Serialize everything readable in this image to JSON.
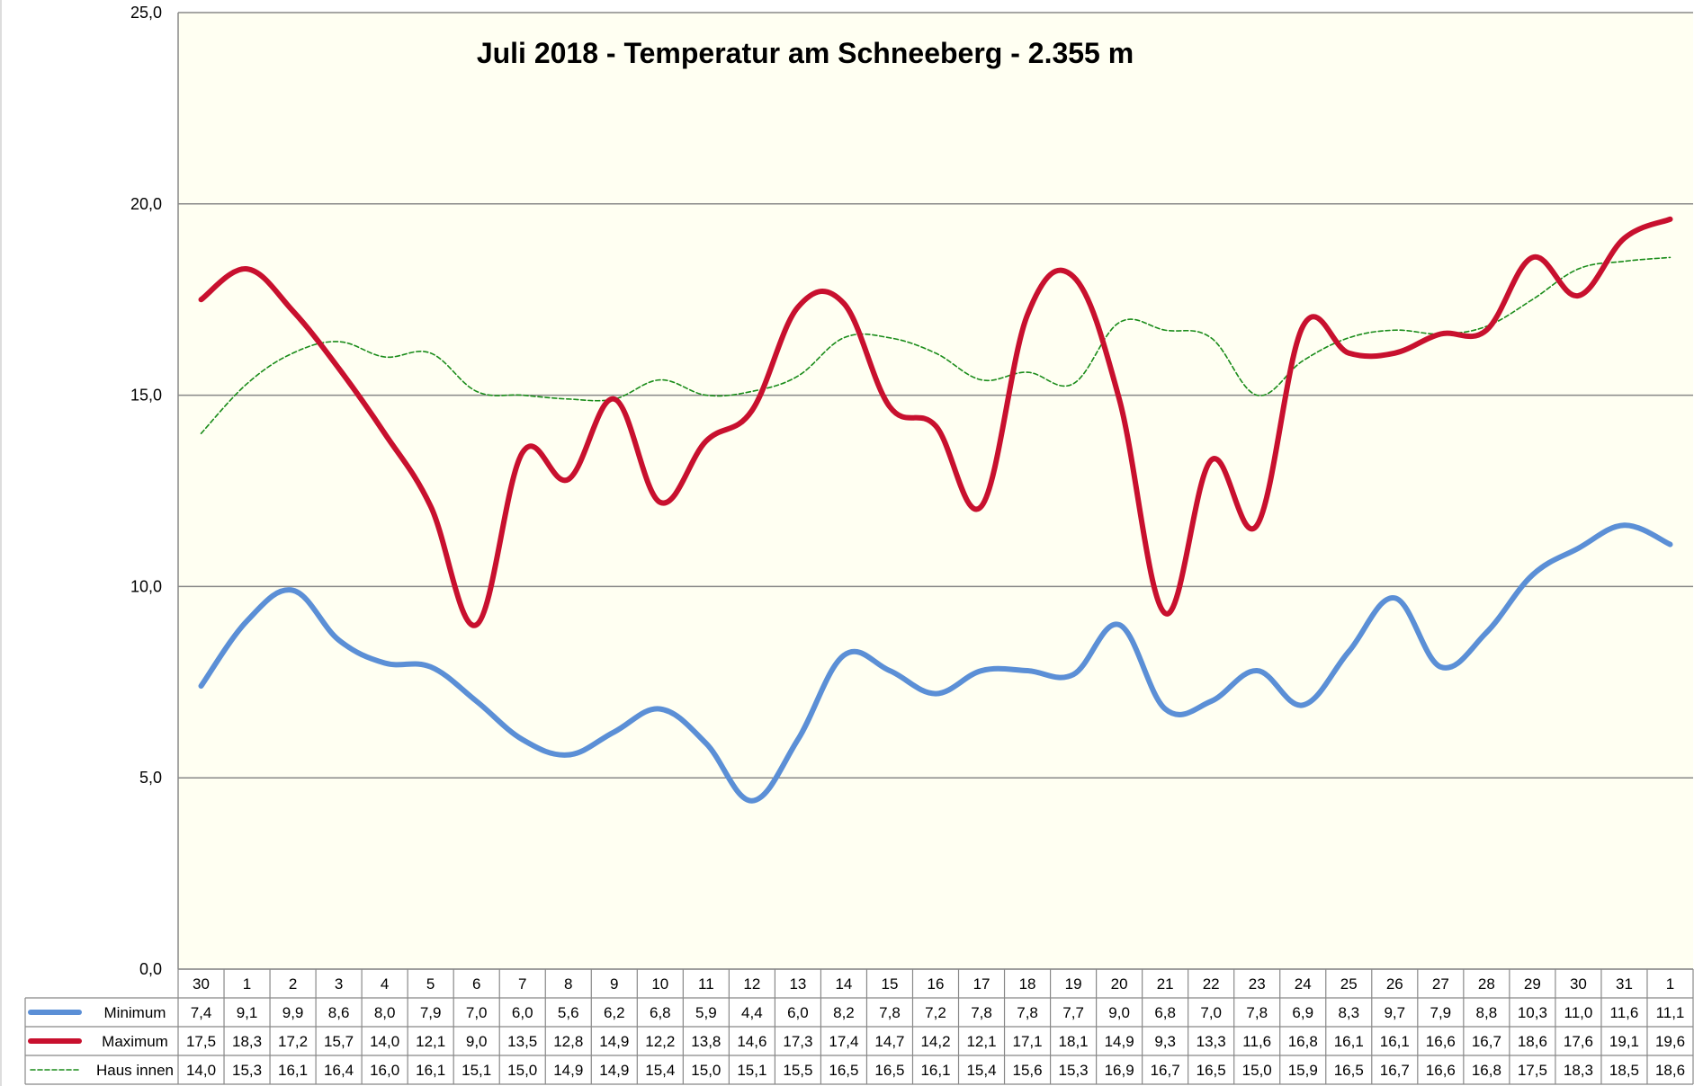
{
  "chart_data": {
    "type": "line",
    "title": "Juli 2018 - Temperatur am Schneeberg - 2.355 m",
    "xlabel": "",
    "ylabel": "",
    "ylim": [
      0,
      25
    ],
    "y_ticks": [
      "0,0",
      "5,0",
      "10,0",
      "15,0",
      "20,0",
      "25,0"
    ],
    "y_tick_values": [
      0,
      5,
      10,
      15,
      20,
      25
    ],
    "grid": true,
    "legend_position": "data-table-bottom-left",
    "categories": [
      "30",
      "1",
      "2",
      "3",
      "4",
      "5",
      "6",
      "7",
      "8",
      "9",
      "10",
      "11",
      "12",
      "13",
      "14",
      "15",
      "16",
      "17",
      "18",
      "19",
      "20",
      "21",
      "22",
      "23",
      "24",
      "25",
      "26",
      "27",
      "28",
      "29",
      "30",
      "31",
      "1"
    ],
    "series": [
      {
        "name": "Minimum",
        "color": "#5b8fd6",
        "style": "solid-thick",
        "values": [
          7.4,
          9.1,
          9.9,
          8.6,
          8.0,
          7.9,
          7.0,
          6.0,
          5.6,
          6.2,
          6.8,
          5.9,
          4.4,
          6.0,
          8.2,
          7.8,
          7.2,
          7.8,
          7.8,
          7.7,
          9.0,
          6.8,
          7.0,
          7.8,
          6.9,
          8.3,
          9.7,
          7.9,
          8.8,
          10.3,
          11.0,
          11.6,
          11.1
        ],
        "labels": [
          "7,4",
          "9,1",
          "9,9",
          "8,6",
          "8,0",
          "7,9",
          "7,0",
          "6,0",
          "5,6",
          "6,2",
          "6,8",
          "5,9",
          "4,4",
          "6,0",
          "8,2",
          "7,8",
          "7,2",
          "7,8",
          "7,8",
          "7,7",
          "9,0",
          "6,8",
          "7,0",
          "7,8",
          "6,9",
          "8,3",
          "9,7",
          "7,9",
          "8,8",
          "10,3",
          "11,0",
          "11,6",
          "11,1"
        ]
      },
      {
        "name": "Maximum",
        "color": "#c8102e",
        "style": "solid-thick",
        "values": [
          17.5,
          18.3,
          17.2,
          15.7,
          14.0,
          12.1,
          9.0,
          13.5,
          12.8,
          14.9,
          12.2,
          13.8,
          14.6,
          17.3,
          17.4,
          14.7,
          14.2,
          12.1,
          17.1,
          18.1,
          14.9,
          9.3,
          13.3,
          11.6,
          16.8,
          16.1,
          16.1,
          16.6,
          16.7,
          18.6,
          17.6,
          19.1,
          19.6
        ],
        "labels": [
          "17,5",
          "18,3",
          "17,2",
          "15,7",
          "14,0",
          "12,1",
          "9,0",
          "13,5",
          "12,8",
          "14,9",
          "12,2",
          "13,8",
          "14,6",
          "17,3",
          "17,4",
          "14,7",
          "14,2",
          "12,1",
          "17,1",
          "18,1",
          "14,9",
          "9,3",
          "13,3",
          "11,6",
          "16,8",
          "16,1",
          "16,1",
          "16,6",
          "16,7",
          "18,6",
          "17,6",
          "19,1",
          "19,6"
        ]
      },
      {
        "name": "Haus innen",
        "color": "#1a8c1a",
        "style": "dashed-thin",
        "values": [
          14.0,
          15.3,
          16.1,
          16.4,
          16.0,
          16.1,
          15.1,
          15.0,
          14.9,
          14.9,
          15.4,
          15.0,
          15.1,
          15.5,
          16.5,
          16.5,
          16.1,
          15.4,
          15.6,
          15.3,
          16.9,
          16.7,
          16.5,
          15.0,
          15.9,
          16.5,
          16.7,
          16.6,
          16.8,
          17.5,
          18.3,
          18.5,
          18.6
        ],
        "labels": [
          "14,0",
          "15,3",
          "16,1",
          "16,4",
          "16,0",
          "16,1",
          "15,1",
          "15,0",
          "14,9",
          "14,9",
          "15,4",
          "15,0",
          "15,1",
          "15,5",
          "16,5",
          "16,5",
          "16,1",
          "15,4",
          "15,6",
          "15,3",
          "16,9",
          "16,7",
          "16,5",
          "15,0",
          "15,9",
          "16,5",
          "16,7",
          "16,6",
          "16,8",
          "17,5",
          "18,3",
          "18,5",
          "18,6"
        ]
      }
    ]
  },
  "colors": {
    "plot_background": "#fffff2",
    "gridline": "#888888",
    "table_border": "#888888"
  }
}
